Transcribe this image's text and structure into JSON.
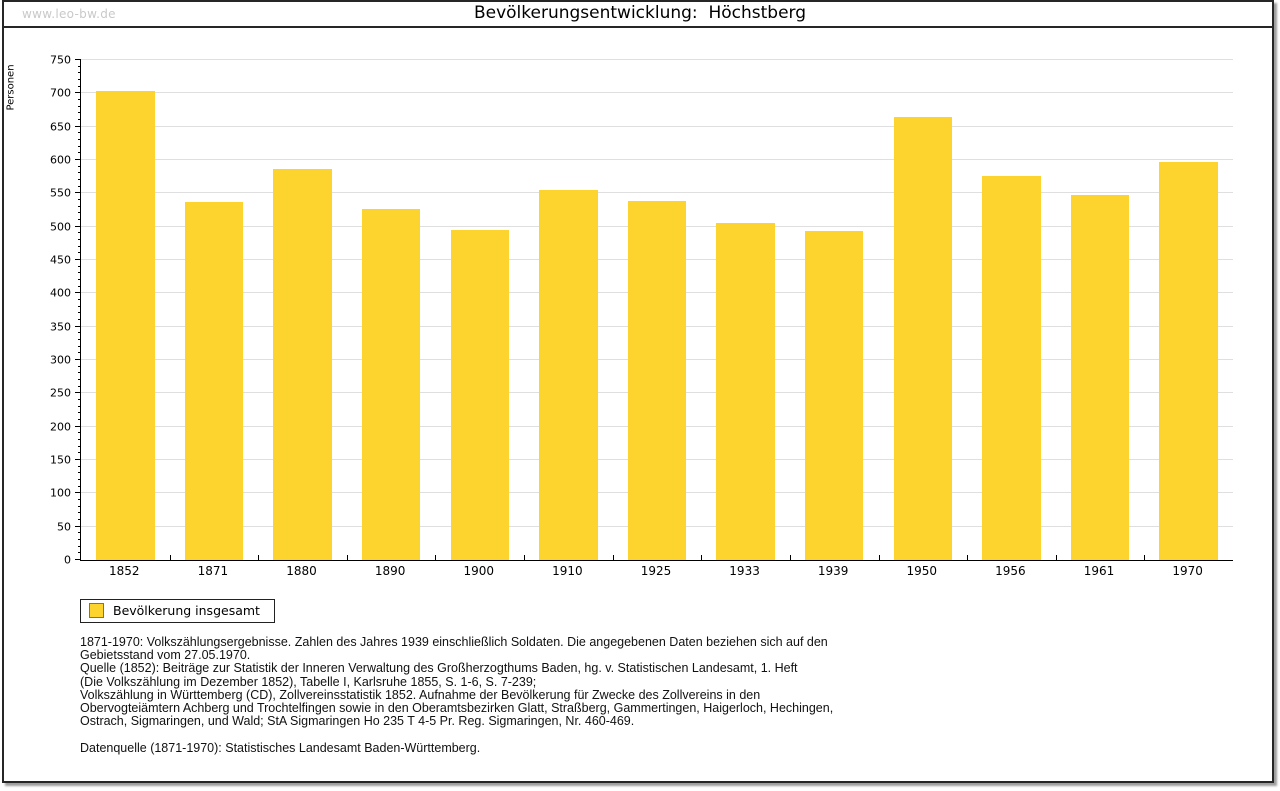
{
  "watermark": "www.leo-bw.de",
  "title": "Bevölkerungsentwicklung:  Höchstberg",
  "chart_data": {
    "type": "bar",
    "title": "Bevölkerungsentwicklung: Höchstberg",
    "xlabel": "",
    "ylabel": "Personen",
    "ylim": [
      0,
      750
    ],
    "ytick_step": 50,
    "minor_tick_step": 10,
    "grid": true,
    "legend_position": "bottom-left",
    "categories": [
      "1852",
      "1871",
      "1880",
      "1890",
      "1900",
      "1910",
      "1925",
      "1933",
      "1939",
      "1950",
      "1956",
      "1961",
      "1970"
    ],
    "series": [
      {
        "name": "Bevölkerung insgesamt",
        "color": "#fdd32e",
        "values": [
          703,
          537,
          587,
          526,
          495,
          555,
          539,
          505,
          494,
          664,
          576,
          547,
          597
        ]
      }
    ]
  },
  "legend": {
    "label": "Bevölkerung insgesamt",
    "swatch_color": "#fdd32e"
  },
  "footnotes": {
    "lines": [
      "1871-1970: Volkszählungsergebnisse. Zahlen des Jahres 1939 einschließlich Soldaten. Die angegebenen Daten beziehen sich auf den",
      "Gebietsstand vom 27.05.1970.",
      "Quelle (1852): Beiträge zur Statistik der Inneren Verwaltung des Großherzogthums Baden, hg. v. Statistischen Landesamt, 1. Heft",
      "(Die Volkszählung im Dezember 1852), Tabelle I, Karlsruhe 1855, S. 1-6, S. 7-239;",
      "Volkszählung in Württemberg (CD), Zollvereinsstatistik 1852. Aufnahme der Bevölkerung für Zwecke des Zollvereins in den",
      "Obervogteiämtern Achberg und Trochtelfingen sowie in den Oberamtsbezirken Glatt, Straßberg, Gammertingen, Haigerloch, Hechingen,",
      "Ostrach, Sigmaringen, und Wald; StA Sigmaringen Ho 235 T 4-5 Pr. Reg. Sigmaringen, Nr. 460-469."
    ],
    "datasource": "Datenquelle (1871-1970): Statistisches Landesamt Baden-Württemberg."
  },
  "colors": {
    "bar": "#fdd32e",
    "gridline": "#dfdfdf",
    "frame": "#262626",
    "watermark": "#c9c9c9"
  }
}
